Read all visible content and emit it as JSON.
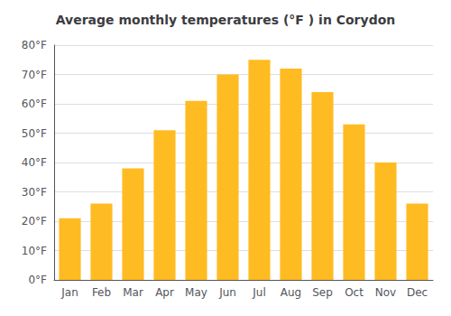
{
  "chart_data": {
    "type": "bar",
    "title": "Average monthly temperatures (°F ) in Corydon",
    "categories": [
      "Jan",
      "Feb",
      "Mar",
      "Apr",
      "May",
      "Jun",
      "Jul",
      "Aug",
      "Sep",
      "Oct",
      "Nov",
      "Dec"
    ],
    "values": [
      21,
      26,
      38,
      51,
      61,
      70,
      75,
      72,
      64,
      53,
      40,
      26
    ],
    "color": "#FFBB22",
    "ylim": [
      0,
      80
    ],
    "yticks": [
      {
        "value": 0,
        "label": "0°F"
      },
      {
        "value": 10,
        "label": "10°F"
      },
      {
        "value": 20,
        "label": "20°F"
      },
      {
        "value": 30,
        "label": "30°F"
      },
      {
        "value": 40,
        "label": "40°F"
      },
      {
        "value": 50,
        "label": "50°F"
      },
      {
        "value": 60,
        "label": "60°F"
      },
      {
        "value": 70,
        "label": "70°F"
      },
      {
        "value": 80,
        "label": "80°F"
      }
    ],
    "grid": true
  }
}
